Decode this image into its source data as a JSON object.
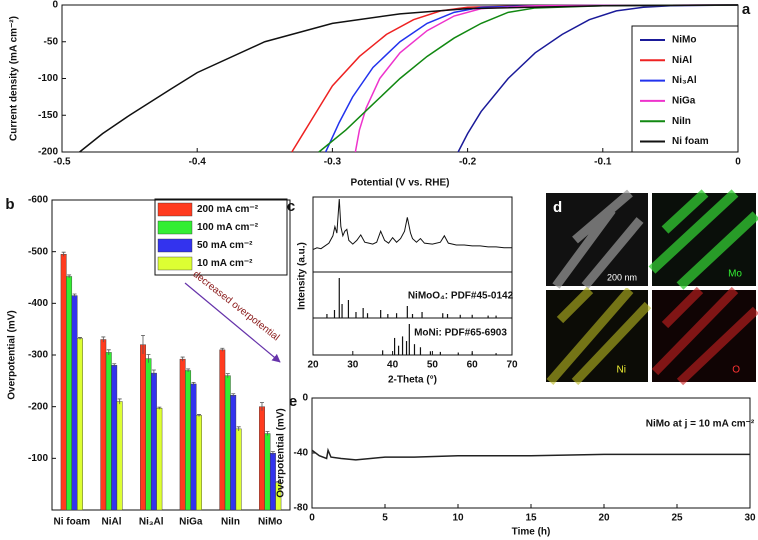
{
  "chart_data": [
    {
      "type": "line",
      "panel_label": "a",
      "xlabel": "Potential (V vs. RHE)",
      "ylabel": "Current density (mA cm⁻²)",
      "xlim": [
        -0.5,
        0
      ],
      "xticks": [
        -0.5,
        -0.4,
        -0.3,
        -0.2,
        -0.1,
        0
      ],
      "ylim": [
        -200,
        0
      ],
      "yticks": [
        0,
        -50,
        -100,
        -150,
        -200
      ],
      "legend": "right",
      "series": [
        {
          "name": "NiMo",
          "color": "#1a1a99",
          "x": [
            -0.207,
            -0.2,
            -0.19,
            -0.17,
            -0.15,
            -0.13,
            -0.11,
            -0.09,
            -0.07,
            -0.05,
            0
          ],
          "values": [
            -200,
            -175,
            -145,
            -100,
            -65,
            -40,
            -20,
            -8,
            -3,
            -1,
            0
          ]
        },
        {
          "name": "NiAl",
          "color": "#ee2222",
          "x": [
            -0.33,
            -0.32,
            -0.31,
            -0.3,
            -0.28,
            -0.26,
            -0.24,
            -0.22,
            -0.2,
            -0.15,
            0
          ],
          "values": [
            -200,
            -170,
            -140,
            -110,
            -70,
            -40,
            -20,
            -8,
            -3,
            -1,
            0
          ]
        },
        {
          "name": "Ni₃Al",
          "color": "#2233ee",
          "x": [
            -0.305,
            -0.295,
            -0.285,
            -0.27,
            -0.25,
            -0.23,
            -0.21,
            -0.19,
            -0.15,
            0
          ],
          "values": [
            -200,
            -160,
            -125,
            -85,
            -50,
            -25,
            -10,
            -3,
            -1,
            0
          ]
        },
        {
          "name": "NiGa",
          "color": "#ee33cc",
          "x": [
            -0.283,
            -0.28,
            -0.275,
            -0.265,
            -0.25,
            -0.23,
            -0.21,
            -0.19,
            -0.15,
            0
          ],
          "values": [
            -200,
            -170,
            -140,
            -100,
            -65,
            -35,
            -15,
            -5,
            -1,
            0
          ]
        },
        {
          "name": "NiIn",
          "color": "#118811",
          "x": [
            -0.31,
            -0.29,
            -0.27,
            -0.25,
            -0.23,
            -0.21,
            -0.19,
            -0.17,
            -0.15,
            -0.1,
            0
          ],
          "values": [
            -200,
            -170,
            -135,
            -100,
            -70,
            -45,
            -25,
            -10,
            -4,
            -1,
            0
          ]
        },
        {
          "name": "Ni foam",
          "color": "#111111",
          "x": [
            -0.487,
            -0.47,
            -0.45,
            -0.42,
            -0.4,
            -0.35,
            -0.3,
            -0.25,
            -0.2,
            -0.1,
            0
          ],
          "values": [
            -200,
            -175,
            -150,
            -115,
            -92,
            -50,
            -25,
            -12,
            -5,
            -1,
            0
          ]
        }
      ]
    },
    {
      "type": "bar",
      "panel_label": "b",
      "ylabel": "Overpotential (mV)",
      "annotation": "decreased overpotential",
      "categories": [
        "Ni foam",
        "NiAl",
        "Ni₃Al",
        "NiGa",
        "NiIn",
        "NiMo"
      ],
      "ylim": [
        0,
        -600
      ],
      "yticks": [
        -100,
        -200,
        -300,
        -400,
        -500,
        -600
      ],
      "series": [
        {
          "name": "200 mA cm⁻²",
          "color": "#ff3b1f",
          "values": [
            -495,
            -330,
            -320,
            -292,
            -310,
            -200
          ],
          "errors": [
            4,
            5,
            18,
            4,
            3,
            8
          ]
        },
        {
          "name": "100 mA cm⁻²",
          "color": "#33ee33",
          "values": [
            -452,
            -305,
            -293,
            -270,
            -260,
            -148
          ],
          "errors": [
            3,
            5,
            8,
            3,
            4,
            4
          ]
        },
        {
          "name": "50 mA cm⁻²",
          "color": "#3333ee",
          "values": [
            -415,
            -280,
            -265,
            -244,
            -222,
            -110
          ],
          "errors": [
            3,
            3,
            6,
            3,
            3,
            3
          ]
        },
        {
          "name": "10 mA cm⁻²",
          "color": "#ddff33",
          "values": [
            -332,
            -210,
            -197,
            -183,
            -157,
            -53
          ],
          "errors": [
            2,
            5,
            2,
            2,
            4,
            2
          ]
        }
      ]
    },
    {
      "type": "xrd",
      "panel_label": "c",
      "xlabel": "2-Theta (°)",
      "ylabel": "Intensity (a.u.)",
      "xlim": [
        20,
        70
      ],
      "xticks": [
        20,
        30,
        40,
        50,
        60,
        70
      ],
      "x": [
        20,
        21,
        22,
        23,
        24,
        25,
        25.5,
        26,
        26.6,
        27,
        27.5,
        28,
        28.5,
        29,
        30,
        31,
        32,
        33,
        34,
        35,
        36,
        37,
        38,
        39,
        40,
        41,
        42,
        43,
        43.7,
        44.5,
        45,
        46,
        47,
        48,
        50,
        52,
        53,
        54,
        56,
        58,
        60,
        62,
        64,
        66,
        68,
        70
      ],
      "values": [
        20,
        22,
        21,
        24,
        27,
        35,
        45,
        38,
        75,
        45,
        35,
        40,
        42,
        30,
        26,
        30,
        36,
        28,
        27,
        26,
        28,
        40,
        30,
        27,
        33,
        28,
        32,
        40,
        55,
        38,
        32,
        28,
        32,
        27,
        26,
        28,
        35,
        27,
        25,
        25,
        24,
        24,
        23,
        23,
        22,
        22
      ],
      "references": [
        {
          "name": "NiMoO₄: PDF#45-0142",
          "x": [
            23.5,
            25.4,
            26.6,
            27.3,
            28.9,
            30.8,
            32.6,
            33.7,
            37,
            38.8,
            41,
            43.7,
            45,
            47.4,
            52.6,
            53.8,
            57,
            60,
            64,
            66
          ],
          "values": [
            10,
            20,
            100,
            35,
            45,
            15,
            25,
            12,
            20,
            10,
            12,
            30,
            10,
            15,
            12,
            10,
            8,
            8,
            6,
            6
          ]
        },
        {
          "name": "MoNi: PDF#65-6903",
          "x": [
            37.5,
            40.5,
            41.5,
            42.5,
            43.5,
            44.2,
            45.5,
            47,
            49.5,
            52,
            56.5,
            60,
            66
          ],
          "values": [
            15,
            55,
            30,
            60,
            45,
            100,
            35,
            25,
            12,
            10,
            8,
            8,
            6
          ]
        }
      ]
    },
    {
      "type": "line",
      "panel_label": "e",
      "xlabel": "Time (h)",
      "ylabel": "Overpotential (mV)",
      "annotation": "NiMo at j = 10 mA cm⁻²",
      "xlim": [
        0,
        30
      ],
      "xticks": [
        0,
        5,
        10,
        15,
        20,
        25,
        30
      ],
      "ylim": [
        -80,
        0
      ],
      "yticks": [
        0,
        -40,
        -80
      ],
      "series": [
        {
          "name": "NiMo",
          "color": "#222222",
          "x": [
            0,
            0.5,
            1,
            1.1,
            1.3,
            2,
            3,
            4,
            5,
            7,
            10,
            15,
            20,
            25,
            30
          ],
          "values": [
            -38,
            -42,
            -44,
            -38,
            -43,
            -44,
            -45,
            -44,
            -43,
            -43,
            -42,
            -42,
            -41,
            -41,
            -41
          ]
        }
      ]
    }
  ],
  "panel_d": {
    "label": "d",
    "scale_bar": "200 nm",
    "maps": [
      "Mo",
      "Ni",
      "O"
    ]
  }
}
